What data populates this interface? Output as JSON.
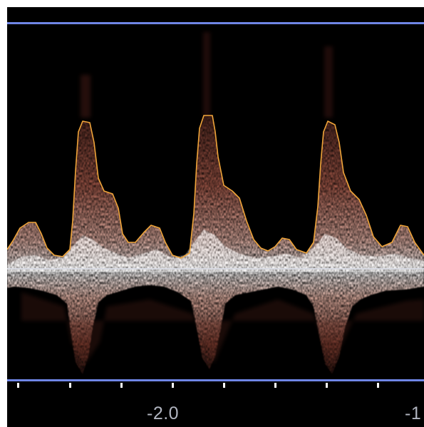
{
  "colors": {
    "background": "#000000",
    "frame": "#ffffff",
    "scale_line": "#6f86e6",
    "baseline": "#d8dbe4",
    "envelope_trace": "#f0a53a",
    "spectral_signal": "#e7a58f",
    "axis_label": "#b0b4bf"
  },
  "time_axis": {
    "tick_labels": [
      "-2.0",
      "-1"
    ]
  }
}
